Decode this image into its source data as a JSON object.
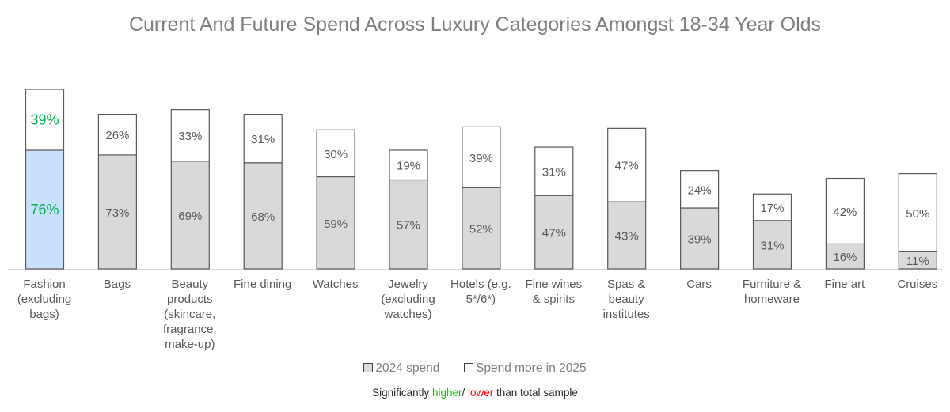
{
  "chart_data": {
    "type": "bar",
    "stacked": true,
    "title": "Current And Future Spend Across Luxury Categories Amongst 18-34 Year Olds",
    "categories": [
      "Fashion (excluding bags)",
      "Bags",
      "Beauty products (skincare, fragrance, make-up)",
      "Fine dining",
      "Watches",
      "Jewelry (excluding watches)",
      "Hotels (e.g. 5*/6*)",
      "Fine wines & spirits",
      "Spas & beauty institutes",
      "Cars",
      "Furniture & homeware",
      "Fine art",
      "Cruises"
    ],
    "category_lines": [
      [
        "Fashion",
        "(excluding",
        "bags)"
      ],
      [
        "Bags"
      ],
      [
        "Beauty",
        "products",
        "(skincare,",
        "fragrance,",
        "make-up)"
      ],
      [
        "Fine dining"
      ],
      [
        "Watches"
      ],
      [
        "Jewelry",
        "(excluding",
        "watches)"
      ],
      [
        "Hotels (e.g.",
        "5*/6*)"
      ],
      [
        "Fine wines",
        "& spirits"
      ],
      [
        "Spas &",
        "beauty",
        "institutes"
      ],
      [
        "Cars"
      ],
      [
        "Furniture &",
        "homeware"
      ],
      [
        "Fine art"
      ],
      [
        "Cruises"
      ]
    ],
    "series": [
      {
        "name": "2024 spend",
        "color": "#d9d9d9",
        "values": [
          76,
          73,
          69,
          68,
          59,
          57,
          52,
          47,
          43,
          39,
          31,
          16,
          11
        ]
      },
      {
        "name": "Spend more in 2025",
        "color": "#ffffff",
        "values": [
          39,
          26,
          33,
          31,
          30,
          19,
          39,
          31,
          47,
          24,
          17,
          42,
          50
        ]
      }
    ],
    "highlight": {
      "category_index": 0,
      "fill": "#c9e0fb",
      "label_color": "#00b050"
    },
    "ylim": [
      0,
      115
    ],
    "grid": false,
    "legend_position": "bottom",
    "xlabel": "",
    "ylabel": ""
  },
  "legend": {
    "items": [
      "2024 spend",
      "Spend more in 2025"
    ]
  },
  "note": {
    "prefix": "Significantly ",
    "higher": "higher",
    "sep": "/ ",
    "lower": "lower",
    "suffix": " than total sample",
    "higher_color": "#00cc00",
    "lower_color": "#ff0000"
  }
}
